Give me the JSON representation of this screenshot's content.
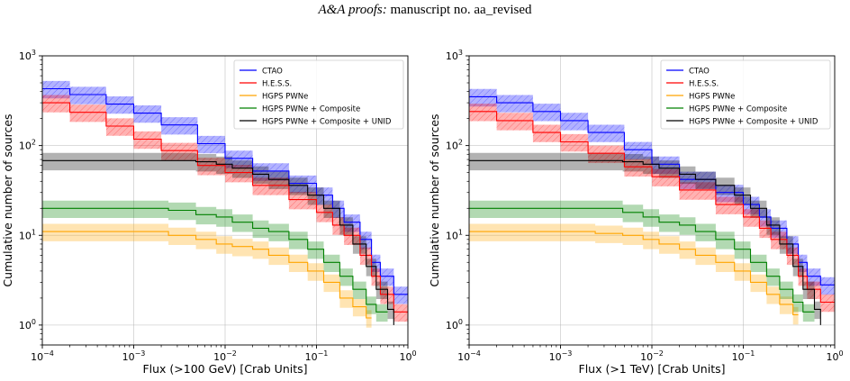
{
  "header": {
    "journal": "A&A proofs:",
    "manuscript": "manuscript no. aa_revised"
  },
  "chart_data": [
    {
      "type": "line",
      "step": true,
      "xscale": "log",
      "yscale": "log",
      "xlim": [
        0.0001,
        1
      ],
      "ylim": [
        0.6,
        1000
      ],
      "xlabel": "Flux (>100 GeV) [Crab Units]",
      "ylabel": "Cumulative number of sources",
      "xticks": [
        {
          "v": 0.0001,
          "b": "10",
          "e": "−4"
        },
        {
          "v": 0.001,
          "b": "10",
          "e": "−3"
        },
        {
          "v": 0.01,
          "b": "10",
          "e": "−2"
        },
        {
          "v": 0.1,
          "b": "10",
          "e": "−1"
        },
        {
          "v": 1,
          "b": "10",
          "e": "0"
        }
      ],
      "yticks": [
        {
          "v": 1,
          "b": "10",
          "e": "0"
        },
        {
          "v": 10,
          "b": "10",
          "e": "1"
        },
        {
          "v": 100,
          "b": "10",
          "e": "2"
        },
        {
          "v": 1000,
          "b": "10",
          "e": "3"
        }
      ],
      "grid": true,
      "legend": "top-right",
      "series": [
        {
          "name": "CTAO",
          "color": "#0000ff",
          "x": [
            0.0001,
            0.0002,
            0.0005,
            0.001,
            0.002,
            0.005,
            0.01,
            0.02,
            0.05,
            0.1,
            0.15,
            0.2,
            0.3,
            0.4,
            0.5,
            0.7,
            1.0
          ],
          "y": [
            430,
            370,
            290,
            230,
            170,
            105,
            72,
            52,
            38,
            28,
            20,
            14,
            9,
            5,
            3.5,
            2.2,
            2.2
          ]
        },
        {
          "name": "H.E.S.S.",
          "color": "#ff0000",
          "x": [
            0.0001,
            0.0002,
            0.0005,
            0.001,
            0.002,
            0.005,
            0.01,
            0.02,
            0.05,
            0.1,
            0.15,
            0.2,
            0.3,
            0.4,
            0.5,
            0.7,
            1.0
          ],
          "y": [
            300,
            235,
            165,
            118,
            88,
            60,
            50,
            36,
            25,
            18,
            13,
            10,
            6,
            3.5,
            2.2,
            1.4,
            1.4
          ]
        },
        {
          "name": "HGPS PWNe",
          "color": "#ffa500",
          "x": [
            0.0001,
            0.001,
            0.0024,
            0.0048,
            0.008,
            0.012,
            0.02,
            0.03,
            0.05,
            0.08,
            0.12,
            0.18,
            0.25,
            0.35,
            0.4
          ],
          "y": [
            11,
            11,
            10,
            9,
            8,
            7.5,
            7,
            6,
            5,
            4,
            3,
            2,
            1.6,
            1.2,
            1.2
          ]
        },
        {
          "name": "HGPS PWNe + Composite",
          "color": "#008000",
          "x": [
            0.0001,
            0.001,
            0.0024,
            0.0048,
            0.008,
            0.012,
            0.02,
            0.03,
            0.05,
            0.08,
            0.12,
            0.18,
            0.25,
            0.35,
            0.45,
            0.6
          ],
          "y": [
            20,
            20,
            19,
            17,
            16,
            14,
            12,
            11,
            9,
            7,
            5,
            3.5,
            2.5,
            1.7,
            1.4,
            1.4
          ]
        },
        {
          "name": "HGPS PWNe + Composite + UNID",
          "color": "#000000",
          "x": [
            0.0001,
            0.001,
            0.0048,
            0.008,
            0.012,
            0.02,
            0.03,
            0.05,
            0.08,
            0.12,
            0.18,
            0.25,
            0.35,
            0.45,
            0.6,
            0.7
          ],
          "y": [
            68,
            68,
            66,
            62,
            56,
            48,
            42,
            36,
            28,
            20,
            13,
            8,
            4.5,
            2.5,
            1.5,
            1.0
          ]
        }
      ]
    },
    {
      "type": "line",
      "step": true,
      "xscale": "log",
      "yscale": "log",
      "xlim": [
        0.0001,
        1
      ],
      "ylim": [
        0.6,
        1000
      ],
      "xlabel": "Flux (>1 TeV) [Crab Units]",
      "ylabel": "Cumulative number of sources",
      "xticks": [
        {
          "v": 0.0001,
          "b": "10",
          "e": "−4"
        },
        {
          "v": 0.001,
          "b": "10",
          "e": "−3"
        },
        {
          "v": 0.01,
          "b": "10",
          "e": "−2"
        },
        {
          "v": 0.1,
          "b": "10",
          "e": "−1"
        },
        {
          "v": 1,
          "b": "10",
          "e": "0"
        }
      ],
      "yticks": [
        {
          "v": 1,
          "b": "10",
          "e": "0"
        },
        {
          "v": 10,
          "b": "10",
          "e": "1"
        },
        {
          "v": 100,
          "b": "10",
          "e": "2"
        },
        {
          "v": 1000,
          "b": "10",
          "e": "3"
        }
      ],
      "grid": true,
      "legend": "top-right",
      "series": [
        {
          "name": "CTAO",
          "color": "#0000ff",
          "x": [
            0.0001,
            0.0002,
            0.0005,
            0.001,
            0.002,
            0.005,
            0.01,
            0.02,
            0.05,
            0.1,
            0.15,
            0.2,
            0.3,
            0.4,
            0.5,
            0.7,
            1.0
          ],
          "y": [
            350,
            300,
            240,
            190,
            140,
            90,
            62,
            42,
            30,
            22,
            16,
            12,
            8,
            5,
            3.5,
            2.8,
            2.8
          ]
        },
        {
          "name": "H.E.S.S.",
          "color": "#ff0000",
          "x": [
            0.0001,
            0.0002,
            0.0005,
            0.001,
            0.002,
            0.005,
            0.01,
            0.02,
            0.05,
            0.1,
            0.15,
            0.2,
            0.3,
            0.4,
            0.5,
            0.7,
            1.0
          ],
          "y": [
            240,
            190,
            140,
            110,
            82,
            58,
            45,
            32,
            22,
            16,
            12,
            9,
            6,
            3.5,
            2.5,
            1.8,
            1.8
          ]
        },
        {
          "name": "HGPS PWNe",
          "color": "#ffa500",
          "x": [
            0.0001,
            0.001,
            0.0024,
            0.0048,
            0.008,
            0.012,
            0.02,
            0.03,
            0.05,
            0.08,
            0.12,
            0.18,
            0.25,
            0.35,
            0.4
          ],
          "y": [
            11,
            11,
            10.5,
            10,
            9,
            8,
            7,
            6,
            5,
            4,
            3,
            2.2,
            1.7,
            1.3,
            1.3
          ]
        },
        {
          "name": "HGPS PWNe + Composite",
          "color": "#008000",
          "x": [
            0.0001,
            0.001,
            0.0024,
            0.0048,
            0.008,
            0.012,
            0.02,
            0.03,
            0.05,
            0.08,
            0.12,
            0.18,
            0.25,
            0.35,
            0.45,
            0.6
          ],
          "y": [
            20,
            20,
            20,
            18,
            16,
            14,
            13,
            11,
            9,
            7,
            5,
            3.5,
            2.5,
            1.8,
            1.4,
            1.4
          ]
        },
        {
          "name": "HGPS PWNe + Composite + UNID",
          "color": "#000000",
          "x": [
            0.0001,
            0.001,
            0.0048,
            0.008,
            0.012,
            0.02,
            0.03,
            0.05,
            0.08,
            0.12,
            0.18,
            0.25,
            0.35,
            0.45,
            0.6,
            0.7
          ],
          "y": [
            68,
            68,
            66,
            62,
            56,
            48,
            42,
            36,
            28,
            20,
            13,
            8,
            4.5,
            2.5,
            1.5,
            1.0
          ]
        }
      ]
    }
  ]
}
